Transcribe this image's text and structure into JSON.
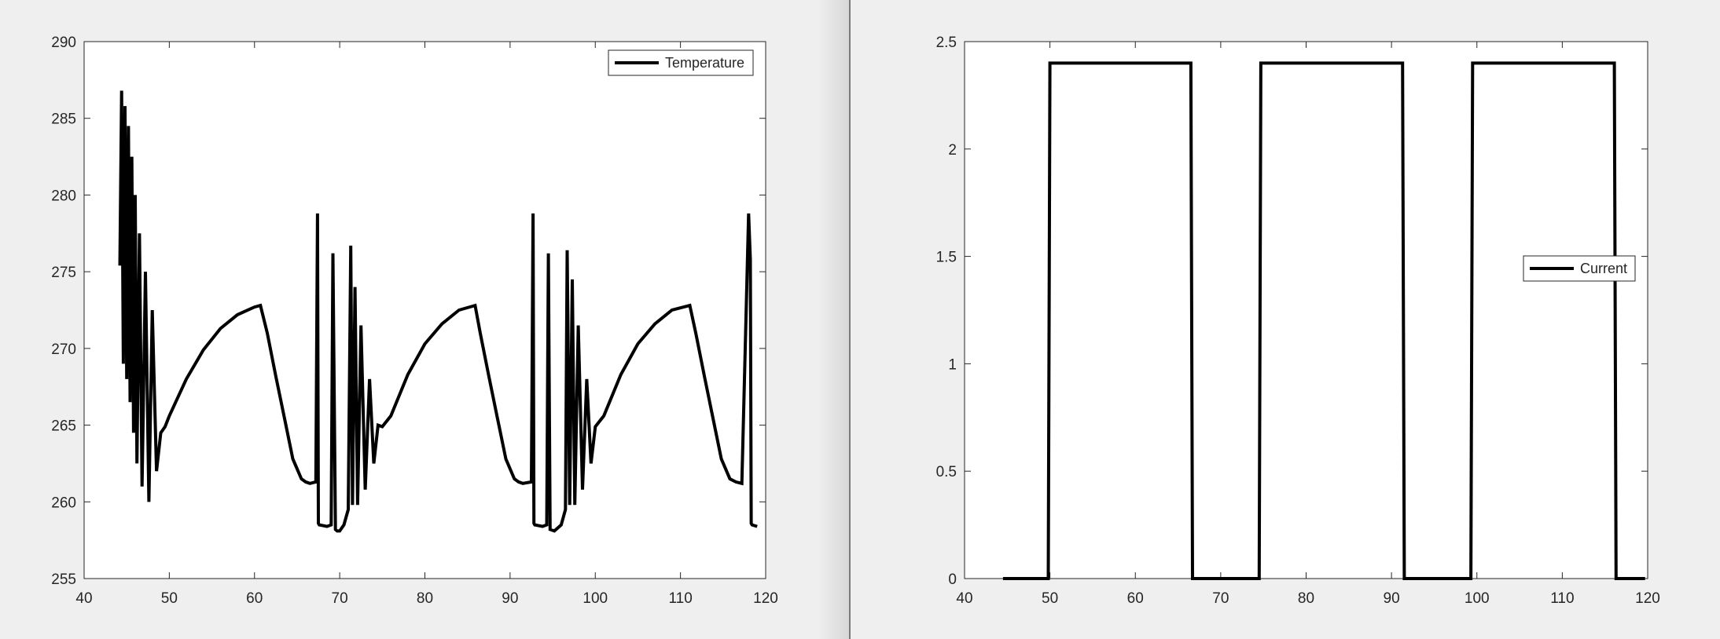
{
  "chart_data": [
    {
      "type": "line",
      "title": "",
      "xlabel": "",
      "ylabel": "",
      "xlim": [
        40,
        120
      ],
      "ylim": [
        255,
        290
      ],
      "xticks": [
        40,
        50,
        60,
        70,
        80,
        90,
        100,
        110,
        120
      ],
      "yticks": [
        255,
        260,
        265,
        270,
        275,
        280,
        285,
        290
      ],
      "grid": false,
      "legend": {
        "position": "top-right",
        "entries": [
          "Temperature"
        ]
      },
      "series": [
        {
          "name": "Temperature",
          "color": "#000000",
          "x": [
            44.2,
            44.4,
            44.6,
            44.8,
            45.0,
            45.2,
            45.4,
            45.6,
            45.8,
            46.0,
            46.2,
            46.5,
            46.8,
            47.2,
            47.6,
            48.0,
            48.5,
            49.0,
            49.5,
            50.0,
            52.0,
            54.0,
            56.0,
            58.0,
            60.0,
            60.7,
            61.5,
            62.5,
            63.5,
            64.5,
            65.5,
            66.0,
            66.5,
            67.2,
            67.4,
            67.5,
            67.6,
            68.5,
            69.0,
            69.2,
            69.5,
            69.7,
            70.0,
            70.5,
            71.0,
            71.3,
            71.5,
            71.8,
            72.1,
            72.5,
            73.0,
            73.5,
            74.0,
            74.5,
            75.0,
            76.0,
            78.0,
            80.0,
            82.0,
            84.0,
            85.9,
            86.5,
            87.5,
            88.5,
            89.5,
            90.5,
            91.0,
            91.5,
            92.5,
            92.7,
            92.8,
            92.9,
            93.8,
            94.3,
            94.5,
            94.7,
            95.2,
            96.0,
            96.5,
            96.7,
            97.0,
            97.3,
            97.6,
            98.0,
            98.5,
            99.0,
            99.5,
            100.0,
            101.0,
            103.0,
            105.0,
            107.0,
            109.0,
            111.1,
            111.8,
            112.8,
            113.8,
            114.8,
            115.8,
            116.5,
            117.2,
            118.0,
            118.2,
            118.3,
            118.4,
            119.0
          ],
          "y": [
            275.4,
            286.8,
            269.0,
            285.8,
            268.0,
            284.5,
            266.5,
            282.5,
            264.5,
            280.0,
            262.5,
            277.5,
            261.0,
            275.0,
            260.0,
            272.5,
            262.0,
            264.5,
            264.9,
            265.6,
            268.0,
            269.9,
            271.3,
            272.2,
            272.7,
            272.8,
            271.0,
            268.2,
            265.5,
            262.8,
            261.5,
            261.3,
            261.2,
            261.3,
            278.8,
            258.6,
            258.5,
            258.4,
            258.5,
            276.2,
            258.2,
            258.1,
            258.1,
            258.5,
            259.5,
            276.7,
            259.8,
            274.0,
            259.8,
            271.5,
            260.8,
            268.0,
            262.5,
            265.0,
            264.9,
            265.6,
            268.3,
            270.3,
            271.6,
            272.5,
            272.8,
            271.0,
            268.2,
            265.5,
            262.8,
            261.5,
            261.3,
            261.2,
            261.3,
            278.8,
            258.6,
            258.5,
            258.4,
            258.5,
            276.2,
            258.2,
            258.1,
            258.5,
            259.5,
            276.4,
            259.8,
            274.5,
            259.8,
            271.5,
            260.8,
            268.0,
            262.5,
            264.9,
            265.6,
            268.3,
            270.3,
            271.6,
            272.5,
            272.8,
            271.0,
            268.2,
            265.5,
            262.8,
            261.5,
            261.3,
            261.2,
            278.8,
            275.8,
            258.6,
            258.5,
            258.4
          ]
        }
      ]
    },
    {
      "type": "line",
      "title": "",
      "xlabel": "",
      "ylabel": "",
      "xlim": [
        40,
        120
      ],
      "ylim": [
        0,
        2.5
      ],
      "xticks": [
        40,
        50,
        60,
        70,
        80,
        90,
        100,
        110,
        120
      ],
      "yticks": [
        0,
        0.5,
        1,
        1.5,
        2,
        2.5
      ],
      "grid": false,
      "legend": {
        "position": "right",
        "entries": [
          "Current"
        ]
      },
      "series": [
        {
          "name": "Current",
          "color": "#000000",
          "x": [
            44.5,
            49.8,
            50.0,
            66.5,
            66.7,
            74.5,
            74.7,
            91.3,
            91.5,
            99.3,
            99.5,
            116.1,
            116.3,
            119.7
          ],
          "y": [
            0,
            0,
            2.4,
            2.4,
            0,
            0,
            2.4,
            2.4,
            0,
            0,
            2.4,
            2.4,
            0,
            0
          ]
        }
      ]
    }
  ]
}
